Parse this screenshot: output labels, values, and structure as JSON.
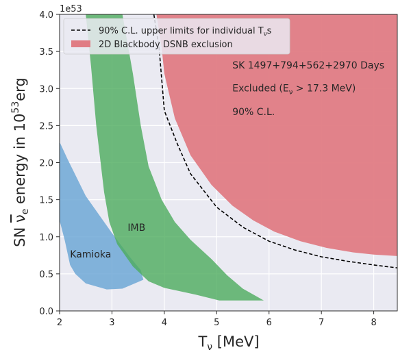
{
  "chart_data": {
    "type": "area",
    "xlabel": "Tν [MeV]",
    "xlabel_parts": {
      "main": "T",
      "sub": "ν",
      "rest": " [MeV]"
    },
    "ylabel": "SN νe energy in 10^53 erg",
    "ylabel_parts": {
      "pre": "SN ",
      "nu": "ν",
      "nu_sub": "e",
      "mid": " energy in 10",
      "exp": "53",
      "post": "erg"
    },
    "offset_text": "1e53",
    "xlim": [
      2,
      8.45
    ],
    "ylim": [
      0.0,
      4.0
    ],
    "xticks": [
      2,
      3,
      4,
      5,
      6,
      7,
      8
    ],
    "yticks": [
      0.0,
      0.5,
      1.0,
      1.5,
      2.0,
      2.5,
      3.0,
      3.5,
      4.0
    ],
    "xtick_labels": [
      "2",
      "3",
      "4",
      "5",
      "6",
      "7",
      "8"
    ],
    "ytick_labels": [
      "0.0",
      "0.5",
      "1.0",
      "1.5",
      "2.0",
      "2.5",
      "3.0",
      "3.5",
      "4.0"
    ],
    "grid": true,
    "legend_position": "top-left",
    "legend": [
      {
        "label_main": "90% C.L. upper limits for individual T",
        "label_sub": "ν",
        "label_tail": "s",
        "style": "dashed-line",
        "color": "#000000"
      },
      {
        "label": "2D Blackbody DSNB exclusion",
        "style": "patch",
        "color": "#e07c84"
      }
    ],
    "annotations": [
      {
        "text": "SK 1497+794+562+2970 Days",
        "x": 5.3,
        "y": 3.27
      },
      {
        "text_pre": "Excluded (E",
        "text_sub": "ν",
        "text_post": " > 17.3 MeV)",
        "x": 5.3,
        "y": 2.96
      },
      {
        "text": "90% C.L.",
        "x": 5.3,
        "y": 2.64
      }
    ],
    "series": [
      {
        "name": "2D Blackbody DSNB exclusion",
        "kind": "region",
        "color": "#e07c84",
        "boundary": [
          [
            3.85,
            4.0
          ],
          [
            3.95,
            3.55
          ],
          [
            4.0,
            3.2
          ],
          [
            4.2,
            2.6
          ],
          [
            4.5,
            2.1
          ],
          [
            4.9,
            1.7
          ],
          [
            5.3,
            1.42
          ],
          [
            5.7,
            1.22
          ],
          [
            6.1,
            1.07
          ],
          [
            6.6,
            0.94
          ],
          [
            7.1,
            0.85
          ],
          [
            7.6,
            0.79
          ],
          [
            8.0,
            0.76
          ],
          [
            8.45,
            0.74
          ]
        ]
      },
      {
        "name": "90% C.L. upper limits for individual Tνs",
        "kind": "line",
        "color": "#000000",
        "points": [
          [
            3.8,
            4.0
          ],
          [
            3.9,
            3.55
          ],
          [
            4.0,
            2.7
          ],
          [
            4.25,
            2.25
          ],
          [
            4.5,
            1.85
          ],
          [
            5.0,
            1.4
          ],
          [
            5.5,
            1.13
          ],
          [
            6.0,
            0.94
          ],
          [
            6.5,
            0.82
          ],
          [
            7.0,
            0.73
          ],
          [
            7.5,
            0.67
          ],
          [
            8.0,
            0.62
          ],
          [
            8.45,
            0.58
          ]
        ]
      },
      {
        "name": "Kamioka",
        "kind": "region",
        "color": "#6fa8d6",
        "label": "Kamioka",
        "label_x": 2.2,
        "label_y": 0.72,
        "outline": [
          [
            2.0,
            2.28
          ],
          [
            2.15,
            2.05
          ],
          [
            2.5,
            1.55
          ],
          [
            3.0,
            1.05
          ],
          [
            3.35,
            0.72
          ],
          [
            3.55,
            0.55
          ],
          [
            3.6,
            0.42
          ],
          [
            3.3,
            0.33
          ],
          [
            3.2,
            0.3
          ],
          [
            2.9,
            0.29
          ],
          [
            2.5,
            0.37
          ],
          [
            2.3,
            0.5
          ],
          [
            2.2,
            0.62
          ],
          [
            2.1,
            0.95
          ],
          [
            2.0,
            1.22
          ]
        ]
      },
      {
        "name": "IMB",
        "kind": "region",
        "color": "#4cab5c",
        "label": "IMB",
        "label_x": 3.3,
        "label_y": 1.08,
        "outline": [
          [
            2.5,
            4.0
          ],
          [
            3.2,
            4.0
          ],
          [
            3.4,
            3.2
          ],
          [
            3.55,
            2.5
          ],
          [
            3.7,
            1.95
          ],
          [
            3.95,
            1.5
          ],
          [
            4.2,
            1.2
          ],
          [
            4.5,
            0.96
          ],
          [
            4.9,
            0.7
          ],
          [
            5.2,
            0.48
          ],
          [
            5.5,
            0.3
          ],
          [
            5.9,
            0.14
          ],
          [
            5.05,
            0.14
          ],
          [
            4.6,
            0.22
          ],
          [
            4.0,
            0.31
          ],
          [
            3.7,
            0.4
          ],
          [
            3.4,
            0.6
          ],
          [
            3.1,
            0.9
          ],
          [
            2.95,
            1.2
          ],
          [
            2.85,
            1.6
          ],
          [
            2.7,
            2.5
          ],
          [
            2.6,
            3.3
          ]
        ]
      }
    ]
  }
}
